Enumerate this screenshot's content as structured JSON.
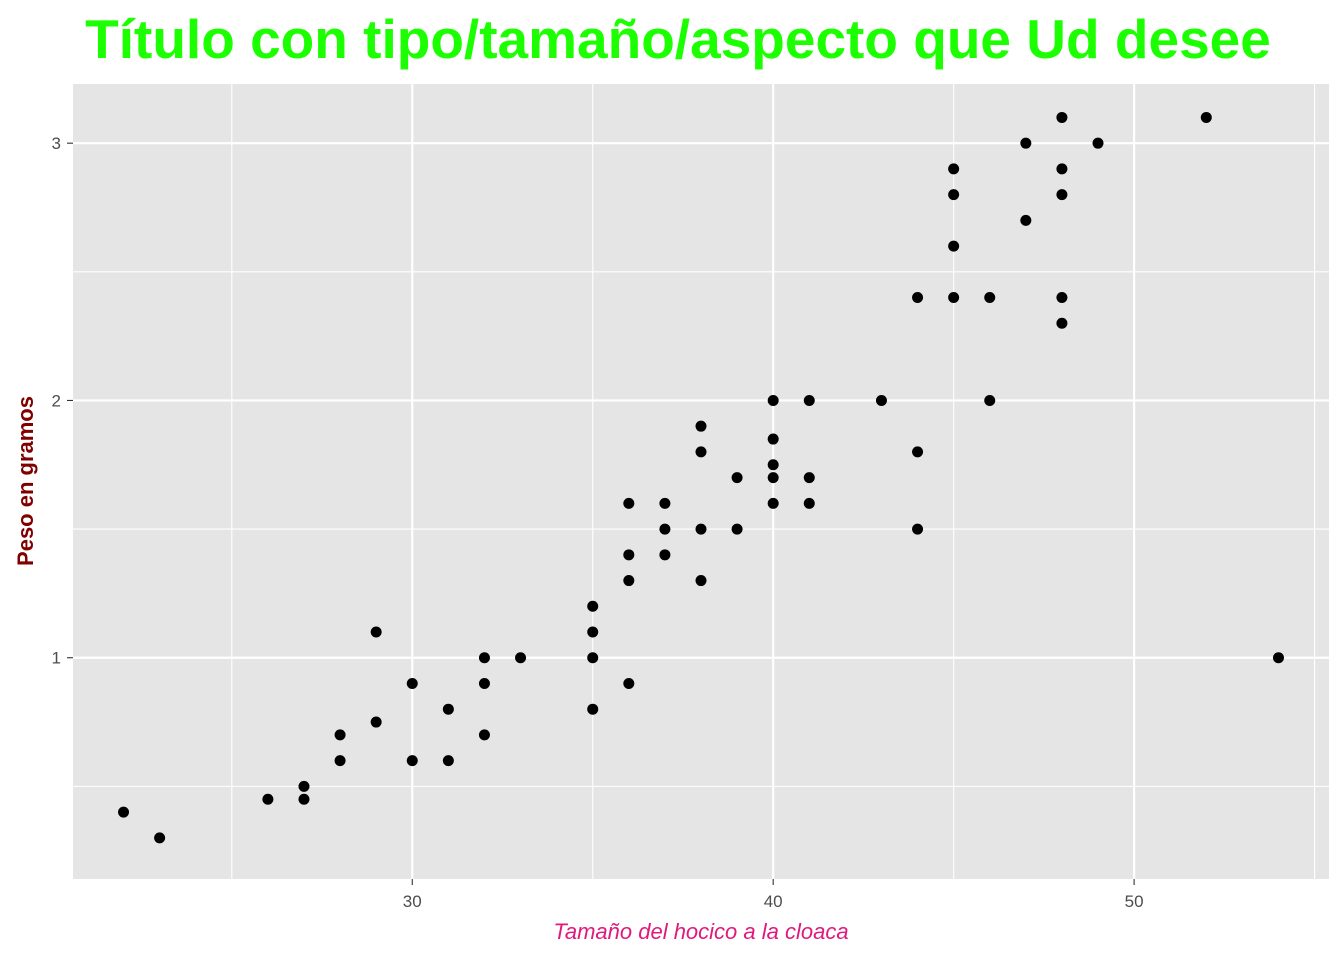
{
  "colors": {
    "title": "#1cff00",
    "xlabel": "#e0197d",
    "ylabel": "#800000",
    "panel": "#e5e5e5",
    "grid": "#ffffff",
    "points": "#000000"
  },
  "chart_data": {
    "type": "scatter",
    "title": "Título con tipo/tamaño/aspecto que Ud desee",
    "xlabel": "Tamaño del hocico a la cloaca",
    "ylabel": "Peso en gramos",
    "xlim": [
      20.6,
      55.4
    ],
    "ylim": [
      0.14,
      3.23
    ],
    "x_ticks": [
      30,
      40,
      50
    ],
    "x_tick_labels": [
      "30",
      "40",
      "50"
    ],
    "y_ticks": [
      1,
      2,
      3
    ],
    "y_tick_labels": [
      "1",
      "2",
      "3"
    ],
    "x_minor_ticks": [
      25,
      35,
      45,
      55
    ],
    "y_minor_ticks": [
      0.5,
      1.5,
      2.5
    ],
    "grid": true,
    "legend": "none",
    "points": [
      [
        22,
        0.4
      ],
      [
        23,
        0.3
      ],
      [
        26,
        0.45
      ],
      [
        27,
        0.5
      ],
      [
        27,
        0.45
      ],
      [
        28,
        0.7
      ],
      [
        28,
        0.6
      ],
      [
        29,
        1.1
      ],
      [
        29,
        0.75
      ],
      [
        30,
        0.9
      ],
      [
        30,
        0.6
      ],
      [
        31,
        0.8
      ],
      [
        31,
        0.6
      ],
      [
        32,
        1.0
      ],
      [
        32,
        0.9
      ],
      [
        32,
        0.7
      ],
      [
        33,
        1.0
      ],
      [
        35,
        1.2
      ],
      [
        35,
        1.1
      ],
      [
        35,
        1.0
      ],
      [
        35,
        0.8
      ],
      [
        36,
        1.6
      ],
      [
        36,
        1.4
      ],
      [
        36,
        1.3
      ],
      [
        36,
        0.9
      ],
      [
        37,
        1.6
      ],
      [
        37,
        1.5
      ],
      [
        37,
        1.4
      ],
      [
        38,
        1.9
      ],
      [
        38,
        1.8
      ],
      [
        38,
        1.5
      ],
      [
        38,
        1.3
      ],
      [
        39,
        1.7
      ],
      [
        39,
        1.5
      ],
      [
        40,
        2.0
      ],
      [
        40,
        1.85
      ],
      [
        40,
        1.75
      ],
      [
        40,
        1.7
      ],
      [
        40,
        1.6
      ],
      [
        41,
        2.0
      ],
      [
        41,
        1.7
      ],
      [
        41,
        1.6
      ],
      [
        43,
        2.0
      ],
      [
        44,
        2.4
      ],
      [
        44,
        1.8
      ],
      [
        44,
        1.5
      ],
      [
        45,
        2.9
      ],
      [
        45,
        2.8
      ],
      [
        45,
        2.6
      ],
      [
        45,
        2.4
      ],
      [
        46,
        2.4
      ],
      [
        46,
        2.0
      ],
      [
        47,
        3.0
      ],
      [
        47,
        2.7
      ],
      [
        48,
        3.1
      ],
      [
        48,
        2.9
      ],
      [
        48,
        2.8
      ],
      [
        48,
        2.4
      ],
      [
        48,
        2.3
      ],
      [
        49,
        3.0
      ],
      [
        52,
        3.1
      ],
      [
        54,
        1.0
      ]
    ]
  }
}
